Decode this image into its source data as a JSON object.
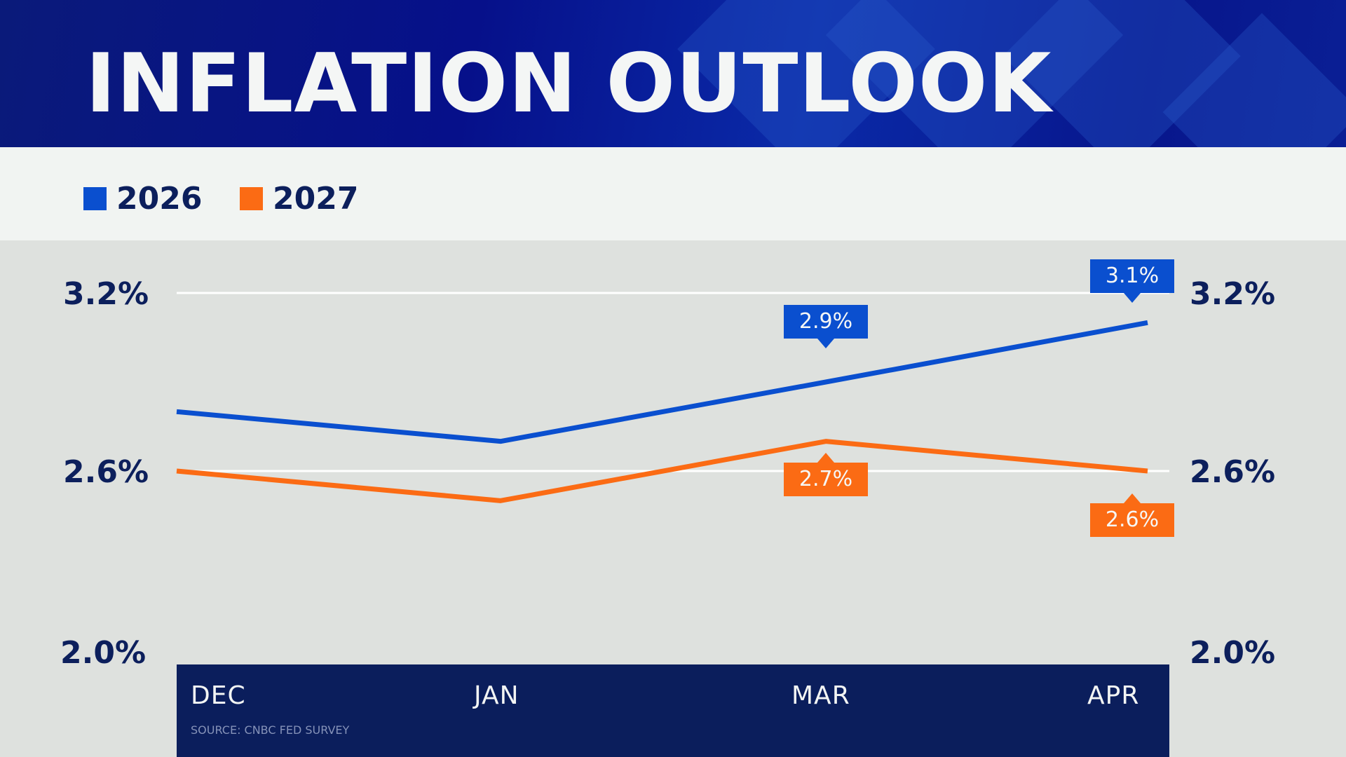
{
  "header": {
    "title": "INFLATION OUTLOOK"
  },
  "colors": {
    "series_2026": "#0a4fcf",
    "series_2027": "#fb6b14",
    "navy": "#0c1f5c",
    "gridline": "#ffffff"
  },
  "legend": [
    {
      "label": "2026",
      "color": "#0a4fcf"
    },
    {
      "label": "2027",
      "color": "#fb6b14"
    }
  ],
  "source": "SOURCE: CNBC FED SURVEY",
  "chart_data": {
    "type": "line",
    "title": "INFLATION OUTLOOK",
    "xlabel": "",
    "ylabel": "",
    "categories": [
      "DEC",
      "JAN",
      "MAR",
      "APR"
    ],
    "yticks": [
      "3.2%",
      "2.6%",
      "2.0%"
    ],
    "ytick_values": [
      3.2,
      2.6,
      2.0
    ],
    "ylim": [
      2.0,
      3.2
    ],
    "grid": true,
    "legend_position": "top-left",
    "series": [
      {
        "name": "2026",
        "color": "#0a4fcf",
        "values": [
          2.8,
          2.7,
          2.9,
          3.1
        ],
        "labels": [
          null,
          null,
          "2.9%",
          "3.1%"
        ],
        "label_placement": "above"
      },
      {
        "name": "2027",
        "color": "#fb6b14",
        "values": [
          2.6,
          2.5,
          2.7,
          2.6
        ],
        "labels": [
          null,
          null,
          "2.7%",
          "2.6%"
        ],
        "label_placement": "below"
      }
    ]
  }
}
